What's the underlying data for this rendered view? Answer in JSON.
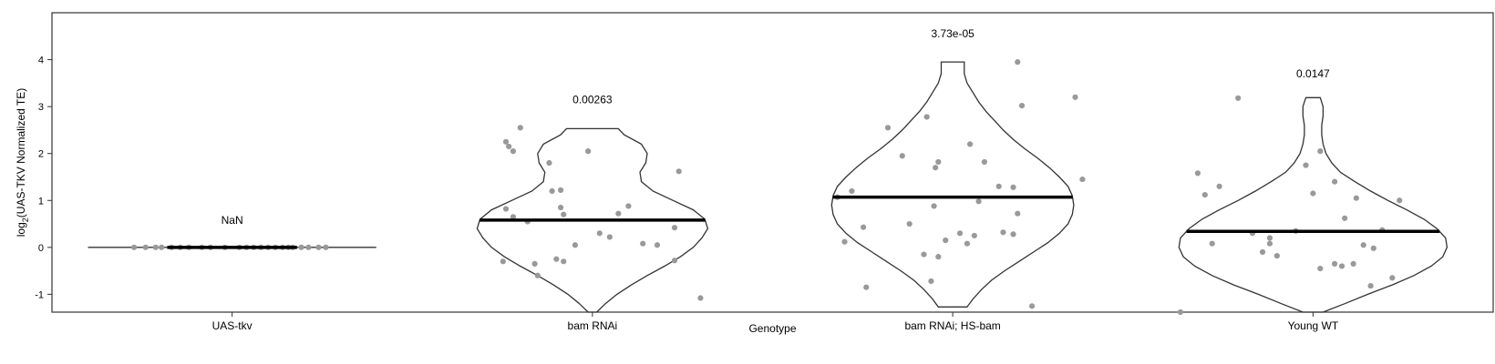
{
  "chart_data": {
    "type": "violin",
    "xlabel": "Genotype",
    "ylabel": {
      "prefix": "log",
      "subscript": "2",
      "suffix": "(UAS-TKV Normalized TE)"
    },
    "ylim": [
      -1.38,
      5.0
    ],
    "yticks": [
      -1,
      0,
      1,
      2,
      3,
      4
    ],
    "grid": false,
    "colors": {
      "violin_stroke": "#333333",
      "points": "#999999",
      "median": "#000000"
    },
    "groups": [
      {
        "name": "UAS-tkv",
        "pvalue_label": "NaN",
        "label_y": 0.58,
        "median": 0.0,
        "kind": "flat",
        "points": [
          [
            -0.68,
            0.0
          ],
          [
            -0.6,
            0.0
          ],
          [
            -0.53,
            0.0
          ],
          [
            -0.49,
            0.0
          ],
          [
            -0.42,
            0.0
          ],
          [
            -0.36,
            0.0
          ],
          [
            -0.3,
            0.0
          ],
          [
            -0.21,
            0.0
          ],
          [
            -0.15,
            0.0
          ],
          [
            -0.05,
            0.0
          ],
          [
            0.05,
            0.0
          ],
          [
            0.1,
            0.0
          ],
          [
            0.15,
            0.0
          ],
          [
            0.2,
            0.0
          ],
          [
            0.25,
            0.0
          ],
          [
            0.3,
            0.0
          ],
          [
            0.35,
            0.0
          ],
          [
            0.39,
            0.0
          ],
          [
            0.42,
            0.0
          ],
          [
            0.48,
            0.0
          ],
          [
            0.53,
            0.0
          ],
          [
            0.6,
            0.0
          ],
          [
            0.65,
            0.0
          ]
        ]
      },
      {
        "name": "bam RNAi",
        "pvalue_label": "0.00263",
        "label_y": 3.15,
        "median": 0.58,
        "kind": "violin",
        "profile": [
          [
            -1.4,
            0.03
          ],
          [
            -1.2,
            0.09
          ],
          [
            -1.0,
            0.17
          ],
          [
            -0.8,
            0.27
          ],
          [
            -0.6,
            0.38
          ],
          [
            -0.4,
            0.5
          ],
          [
            -0.2,
            0.61
          ],
          [
            0.0,
            0.7
          ],
          [
            0.2,
            0.76
          ],
          [
            0.4,
            0.8
          ],
          [
            0.6,
            0.78
          ],
          [
            0.8,
            0.7
          ],
          [
            1.0,
            0.56
          ],
          [
            1.2,
            0.42
          ],
          [
            1.4,
            0.34
          ],
          [
            1.6,
            0.33
          ],
          [
            1.8,
            0.37
          ],
          [
            2.0,
            0.38
          ],
          [
            2.2,
            0.34
          ],
          [
            2.4,
            0.22
          ],
          [
            2.53,
            0.18
          ]
        ],
        "points": [
          [
            -0.6,
            0.82
          ],
          [
            -0.55,
            0.65
          ],
          [
            -0.45,
            0.55
          ],
          [
            -0.62,
            -0.3
          ],
          [
            -0.4,
            -0.35
          ],
          [
            -0.38,
            -0.6
          ],
          [
            -0.5,
            2.55
          ],
          [
            -0.6,
            2.25
          ],
          [
            -0.58,
            2.15
          ],
          [
            -0.55,
            2.05
          ],
          [
            -0.3,
            1.8
          ],
          [
            -0.28,
            1.2
          ],
          [
            -0.22,
            1.22
          ],
          [
            -0.22,
            0.85
          ],
          [
            -0.2,
            0.7
          ],
          [
            0.05,
            0.3
          ],
          [
            -0.12,
            0.05
          ],
          [
            0.25,
            0.88
          ],
          [
            0.18,
            0.72
          ],
          [
            0.12,
            0.22
          ],
          [
            0.35,
            0.08
          ],
          [
            0.45,
            0.05
          ],
          [
            0.57,
            0.42
          ],
          [
            0.6,
            1.62
          ],
          [
            0.57,
            -0.28
          ],
          [
            -0.2,
            -0.3
          ],
          [
            -0.25,
            -0.25
          ],
          [
            0.75,
            -1.08
          ],
          [
            -0.03,
            2.05
          ],
          [
            -0.12,
            -1.4
          ]
        ]
      },
      {
        "name": "bam RNAi; HS-bam",
        "pvalue_label": "3.73e-05",
        "label_y": 4.55,
        "median": 1.07,
        "kind": "violin",
        "profile": [
          [
            -1.27,
            0.1
          ],
          [
            -1.1,
            0.14
          ],
          [
            -0.9,
            0.2
          ],
          [
            -0.7,
            0.27
          ],
          [
            -0.5,
            0.36
          ],
          [
            -0.3,
            0.46
          ],
          [
            -0.1,
            0.56
          ],
          [
            0.1,
            0.66
          ],
          [
            0.3,
            0.74
          ],
          [
            0.5,
            0.8
          ],
          [
            0.7,
            0.83
          ],
          [
            0.9,
            0.84
          ],
          [
            1.1,
            0.83
          ],
          [
            1.3,
            0.8
          ],
          [
            1.5,
            0.74
          ],
          [
            1.7,
            0.67
          ],
          [
            1.9,
            0.59
          ],
          [
            2.1,
            0.5
          ],
          [
            2.3,
            0.42
          ],
          [
            2.5,
            0.35
          ],
          [
            2.7,
            0.29
          ],
          [
            2.9,
            0.23
          ],
          [
            3.1,
            0.18
          ],
          [
            3.3,
            0.14
          ],
          [
            3.5,
            0.1
          ],
          [
            3.7,
            0.08
          ],
          [
            3.95,
            0.08
          ]
        ],
        "points": [
          [
            -0.8,
            1.07
          ],
          [
            -0.7,
            1.2
          ],
          [
            -0.62,
            0.43
          ],
          [
            -0.75,
            0.12
          ],
          [
            -0.6,
            -0.85
          ],
          [
            -0.45,
            2.55
          ],
          [
            -0.35,
            1.95
          ],
          [
            -0.18,
            2.78
          ],
          [
            -0.12,
            1.7
          ],
          [
            -0.1,
            1.82
          ],
          [
            0.12,
            2.2
          ],
          [
            0.22,
            1.82
          ],
          [
            0.32,
            1.3
          ],
          [
            0.42,
            1.28
          ],
          [
            0.45,
            0.72
          ],
          [
            0.48,
            3.02
          ],
          [
            0.45,
            3.95
          ],
          [
            0.85,
            3.2
          ],
          [
            0.9,
            1.45
          ],
          [
            0.18,
            0.98
          ],
          [
            -0.13,
            0.88
          ],
          [
            -0.2,
            -0.15
          ],
          [
            -0.1,
            -0.2
          ],
          [
            -0.15,
            -0.72
          ],
          [
            -0.3,
            0.5
          ],
          [
            0.05,
            0.3
          ],
          [
            -0.05,
            0.15
          ],
          [
            0.15,
            0.25
          ],
          [
            0.35,
            0.32
          ],
          [
            0.42,
            0.28
          ],
          [
            0.55,
            -1.25
          ],
          [
            0.1,
            0.08
          ]
        ]
      },
      {
        "name": "Young WT",
        "pvalue_label": "0.0147",
        "label_y": 3.7,
        "median": 0.34,
        "kind": "violin",
        "profile": [
          [
            -1.4,
            0.07
          ],
          [
            -1.2,
            0.22
          ],
          [
            -1.0,
            0.38
          ],
          [
            -0.8,
            0.55
          ],
          [
            -0.6,
            0.7
          ],
          [
            -0.4,
            0.82
          ],
          [
            -0.2,
            0.9
          ],
          [
            0.0,
            0.93
          ],
          [
            0.2,
            0.92
          ],
          [
            0.4,
            0.86
          ],
          [
            0.6,
            0.77
          ],
          [
            0.8,
            0.65
          ],
          [
            1.0,
            0.52
          ],
          [
            1.2,
            0.4
          ],
          [
            1.4,
            0.29
          ],
          [
            1.6,
            0.19
          ],
          [
            1.8,
            0.13
          ],
          [
            2.0,
            0.09
          ],
          [
            2.2,
            0.07
          ],
          [
            2.4,
            0.06
          ],
          [
            2.6,
            0.06
          ],
          [
            2.8,
            0.07
          ],
          [
            3.0,
            0.07
          ],
          [
            3.19,
            0.05
          ]
        ],
        "points": [
          [
            -0.8,
            1.58
          ],
          [
            -0.75,
            1.12
          ],
          [
            -0.65,
            1.3
          ],
          [
            -0.7,
            0.08
          ],
          [
            -0.52,
            3.18
          ],
          [
            -0.42,
            0.3
          ],
          [
            -0.35,
            -0.1
          ],
          [
            -0.3,
            0.08
          ],
          [
            -0.25,
            -0.18
          ],
          [
            -0.3,
            0.2
          ],
          [
            -0.12,
            0.35
          ],
          [
            -0.05,
            1.75
          ],
          [
            0.0,
            1.15
          ],
          [
            0.05,
            2.05
          ],
          [
            0.15,
            1.4
          ],
          [
            0.22,
            0.62
          ],
          [
            0.3,
            1.05
          ],
          [
            0.35,
            0.05
          ],
          [
            0.42,
            -0.02
          ],
          [
            0.28,
            -0.35
          ],
          [
            0.2,
            -0.4
          ],
          [
            0.15,
            -0.35
          ],
          [
            0.05,
            -0.45
          ],
          [
            0.4,
            -0.82
          ],
          [
            0.55,
            -0.65
          ],
          [
            0.6,
            1.0
          ],
          [
            0.48,
            0.37
          ],
          [
            -0.92,
            -1.38
          ]
        ]
      }
    ]
  }
}
